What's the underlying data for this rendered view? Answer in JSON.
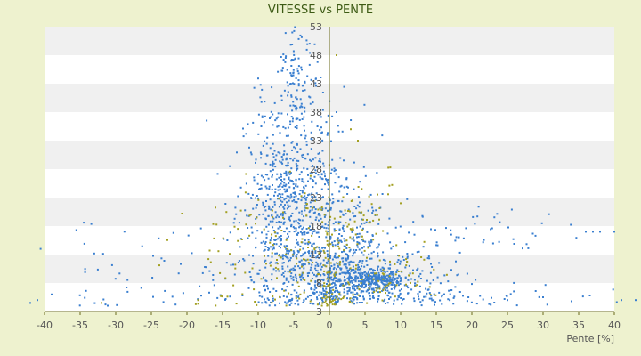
{
  "chart_data": {
    "type": "scatter",
    "title": "VITESSE vs PENTE",
    "xlabel": "Pente [%]",
    "ylabel": "",
    "xlim": [
      -40,
      40
    ],
    "ylim": [
      3,
      53
    ],
    "x_ticks": [
      "-40",
      "-35",
      "-30",
      "-25",
      "-20",
      "-15",
      "-10",
      "-5",
      "0",
      "5",
      "10",
      "15",
      "20",
      "25",
      "30",
      "35",
      "40"
    ],
    "y_ticks": [
      "3",
      "8",
      "13",
      "18",
      "23",
      "28",
      "33",
      "38",
      "43",
      "48",
      "53"
    ],
    "grid": "alternating horizontal bands",
    "legend": "none",
    "colors": {
      "background": "#eef2cf",
      "plot_band_light": "#ffffff",
      "plot_band_dark": "#f0f0f0",
      "axis": "#6b6b1e",
      "series_blue": "#3a7fd0",
      "series_olive": "#a3a022"
    },
    "series": [
      {
        "color": "#3a7fd0",
        "clusters": [
          {
            "cx": -5,
            "cy": 24,
            "sx": 3.5,
            "sy": 8,
            "n": 650
          },
          {
            "cx": -4.5,
            "cy": 44,
            "sx": 1.5,
            "sy": 5,
            "n": 110
          },
          {
            "cx": -2,
            "cy": 12,
            "sx": 5,
            "sy": 4.5,
            "n": 320
          },
          {
            "cx": 6,
            "cy": 8.5,
            "sx": 2.5,
            "sy": 0.9,
            "n": 320
          },
          {
            "cx": 6,
            "cy": 9,
            "sx": 6,
            "sy": 3.5,
            "n": 260
          },
          {
            "cx": 3,
            "cy": 18,
            "sx": 3,
            "sy": 6,
            "n": 110
          },
          {
            "cx": 22,
            "cy": 17,
            "sx": 8,
            "sy": 1.8,
            "n": 45
          },
          {
            "cx": 12,
            "cy": 5.5,
            "sx": 14,
            "sy": 1.2,
            "n": 110
          },
          {
            "cx": -22,
            "cy": 9,
            "sx": 10,
            "sy": 5,
            "n": 80
          },
          {
            "cx": 0,
            "cy": 7.5,
            "sx": 1,
            "sy": 2.5,
            "n": 70
          }
        ]
      },
      {
        "color": "#a3a022",
        "clusters": [
          {
            "cx": -4,
            "cy": 13,
            "sx": 7,
            "sy": 6,
            "n": 190
          },
          {
            "cx": 4,
            "cy": 16,
            "sx": 3,
            "sy": 7,
            "n": 70
          },
          {
            "cx": 8,
            "cy": 8,
            "sx": 5,
            "sy": 2,
            "n": 40
          },
          {
            "cx": 0,
            "cy": 6,
            "sx": 1,
            "sy": 3,
            "n": 40
          }
        ]
      }
    ],
    "extra_points": [
      {
        "x": -41,
        "y": 5,
        "color": "#3a7fd0"
      },
      {
        "x": -42,
        "y": 4.5,
        "color": "#3a7fd0"
      },
      {
        "x": -39,
        "y": 6,
        "color": "#3a7fd0"
      },
      {
        "x": -32,
        "y": 4.5,
        "color": "#a3a022"
      },
      {
        "x": 36,
        "y": 17,
        "color": "#3a7fd0"
      },
      {
        "x": 37,
        "y": 17,
        "color": "#3a7fd0"
      },
      {
        "x": 38,
        "y": 17,
        "color": "#3a7fd0"
      },
      {
        "x": 40,
        "y": 17,
        "color": "#3a7fd0"
      },
      {
        "x": 41,
        "y": 5,
        "color": "#3a7fd0"
      },
      {
        "x": 43,
        "y": 5,
        "color": "#3a7fd0"
      },
      {
        "x": 44,
        "y": 5,
        "color": "#3a7fd0"
      },
      {
        "x": 1,
        "y": 48,
        "color": "#a3a022"
      },
      {
        "x": 3,
        "y": 35,
        "color": "#a3a022"
      },
      {
        "x": 4,
        "y": 33,
        "color": "#a3a022"
      },
      {
        "x": 10,
        "y": 22,
        "color": "#a3a022"
      },
      {
        "x": 1,
        "y": 38,
        "color": "#3a7fd0"
      },
      {
        "x": 25,
        "y": 5,
        "color": "#3a7fd0"
      },
      {
        "x": 30,
        "y": 5.5,
        "color": "#3a7fd0"
      },
      {
        "x": 34,
        "y": 4.8,
        "color": "#3a7fd0"
      }
    ]
  }
}
